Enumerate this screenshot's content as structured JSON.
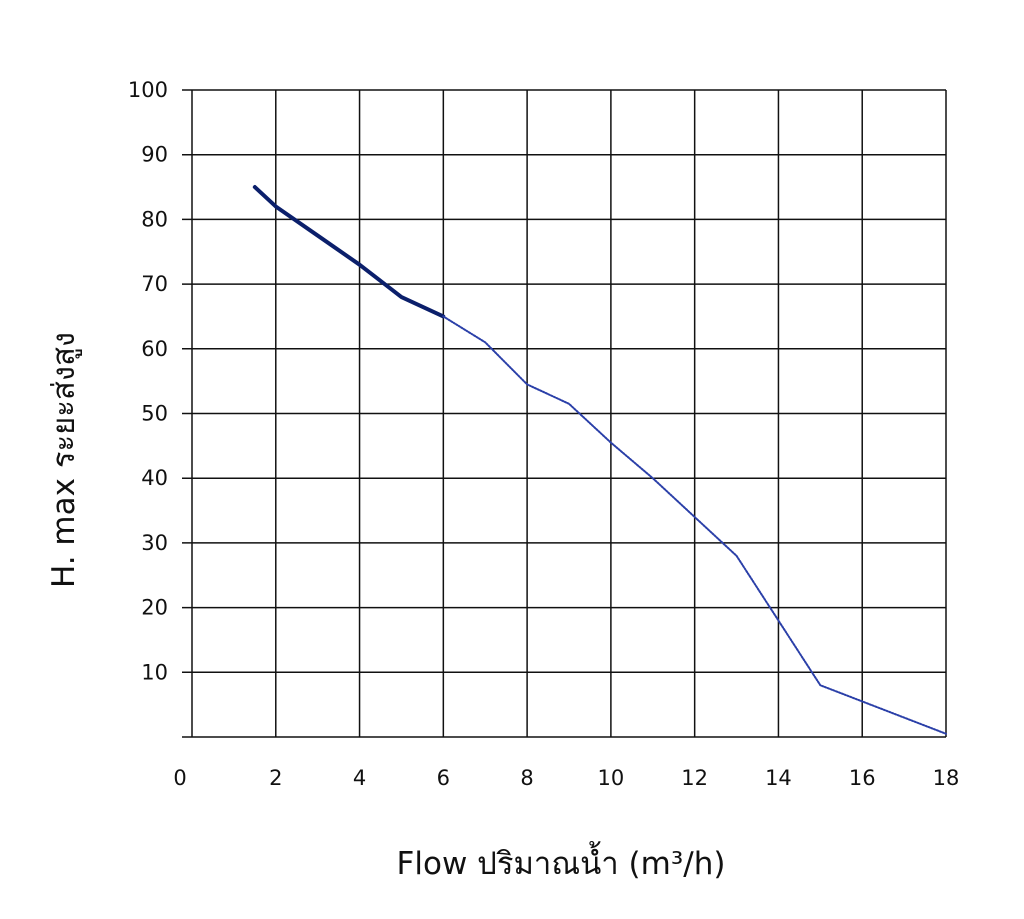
{
  "chart_data": {
    "type": "line",
    "title": "",
    "xlabel": "Flow  ปริมาณน้ำ (m³/h)",
    "ylabel": "H. max  ระยะส่งสูง",
    "xlim": [
      0,
      18
    ],
    "ylim": [
      0,
      100
    ],
    "x_ticks": [
      0,
      2,
      4,
      6,
      8,
      10,
      12,
      14,
      16,
      18
    ],
    "x_tick_labels": [
      "0",
      "2",
      "4",
      "6",
      "8",
      "10",
      "12",
      "14",
      "16",
      "18"
    ],
    "y_ticks": [
      10,
      20,
      30,
      40,
      50,
      60,
      70,
      80,
      90,
      100
    ],
    "y_tick_labels": [
      "10",
      "20",
      "30",
      "40",
      "50",
      "60",
      "70",
      "80",
      "90",
      "100"
    ],
    "grid": true,
    "legend": "none",
    "series": [
      {
        "style": "solid",
        "color": "#0b1f6b",
        "x": [
          1.5,
          2,
          3,
          4,
          5,
          6
        ],
        "y": [
          85,
          82,
          77.5,
          73,
          68,
          65
        ]
      },
      {
        "style": "dotted",
        "color": "#2a3fa8",
        "x": [
          6,
          7,
          8,
          9,
          10,
          11,
          12,
          13,
          14,
          15,
          16,
          17,
          18
        ],
        "y": [
          65,
          61,
          54.5,
          51.5,
          45.5,
          40,
          34,
          28,
          18,
          8,
          5.5,
          3,
          0.5
        ]
      }
    ]
  }
}
